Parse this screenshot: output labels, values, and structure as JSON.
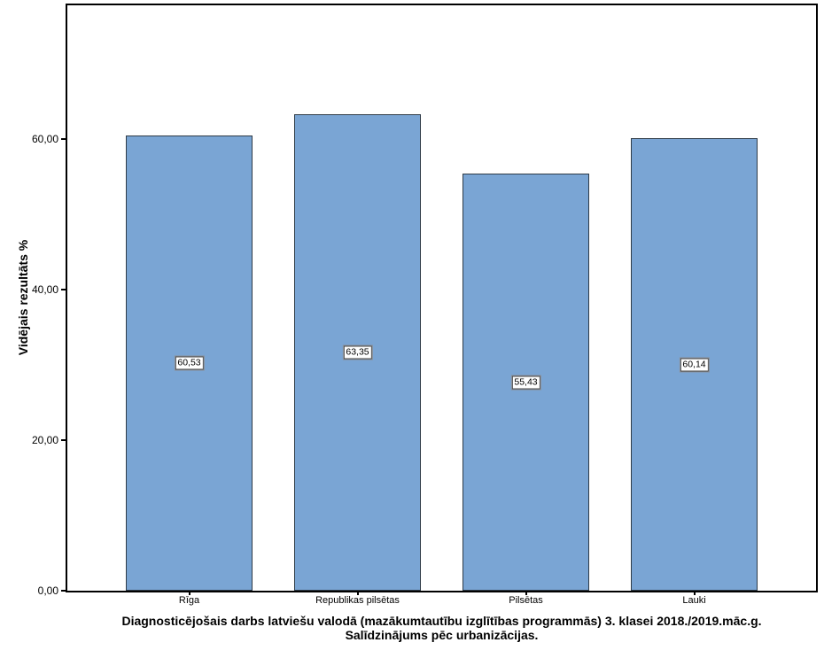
{
  "chart_data": {
    "type": "bar",
    "title": "Diagnosticējošais darbs latviešu valodā (mazākumtautību izglītības programmās) 3. klasei 2018./2019.māc.g. Salīdzinājums pēc urbanizācijas.",
    "title_lines": [
      "Diagnosticējošais darbs latviešu valodā (mazākumtautību izglītības programmās) 3. klasei 2018./2019.māc.g.",
      "Salīdzinājums pēc urbanizācijas."
    ],
    "xlabel": "",
    "ylabel": "Vidējais rezultāts %",
    "categories": [
      "Rīga",
      "Republikas pilsētas",
      "Pilsētas",
      "Lauki"
    ],
    "values": [
      60.53,
      63.35,
      55.43,
      60.14
    ],
    "value_labels": [
      "60,53",
      "63,35",
      "55,43",
      "60,14"
    ],
    "yticks": [
      {
        "value": 0,
        "label": "0,00"
      },
      {
        "value": 20,
        "label": "20,00"
      },
      {
        "value": 40,
        "label": "40,00"
      },
      {
        "value": 60,
        "label": "60,00"
      }
    ],
    "ylim": [
      0,
      77.8
    ],
    "grid": false,
    "legend_position": "none",
    "bar_color": "#7aa5d4",
    "bar_border_color": "#2e3b47",
    "frame_color": "#000000",
    "value_box_bg": "#ffffff"
  }
}
